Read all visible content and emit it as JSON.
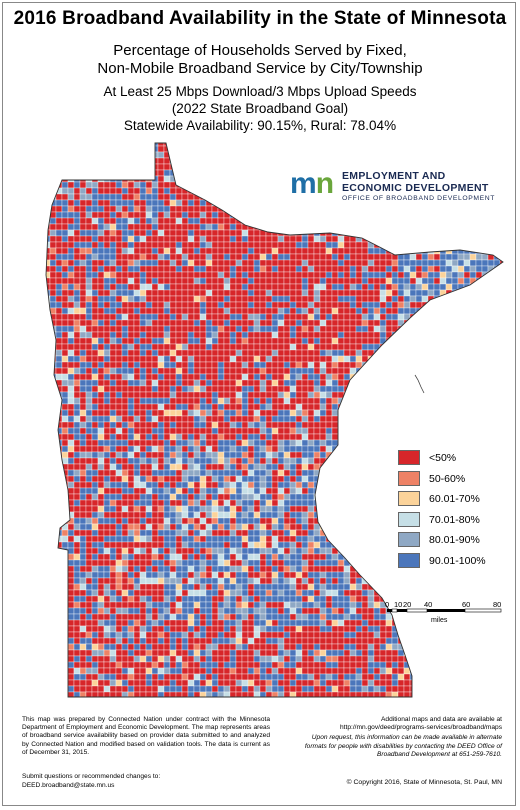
{
  "title": "2016 Broadband Availability in the State of Minnesota",
  "subtitle_line1": "Percentage of Households Served by Fixed,",
  "subtitle_line2": "Non-Mobile Broadband Service by City/Township",
  "speed_line": "At Least 25 Mbps Download/3 Mbps Upload Speeds",
  "goal_line": "(2022 State Broadband Goal)",
  "availability_line": "Statewide Availability: 90.15%, Rural: 78.04%",
  "logo": {
    "mark_m": "m",
    "mark_n": "n",
    "org_line1": "EMPLOYMENT AND",
    "org_line2": "ECONOMIC DEVELOPMENT",
    "org_line3": "OFFICE OF BROADBAND DEVELOPMENT"
  },
  "legend": [
    {
      "label": "<50%",
      "color": "#d7262a"
    },
    {
      "label": "50-60%",
      "color": "#ee8266"
    },
    {
      "label": "60.01-70%",
      "color": "#fbd39a"
    },
    {
      "label": "70.01-80%",
      "color": "#c6dfe6"
    },
    {
      "label": "80.01-90%",
      "color": "#8fa8c4"
    },
    {
      "label": "90.01-100%",
      "color": "#4b76bb"
    }
  ],
  "scale": {
    "ticks": [
      "0",
      "10",
      "20",
      "40",
      "60",
      "80"
    ],
    "units": "miles"
  },
  "note_left": "This map was prepared by Connected Nation under contract with the Minnesota Department of Employment and Economic Development. The map represents areas of broadband service availability based on provider data submitted to and analyzed by Connected Nation and modified based on validation tools.  The data is current as of December 31, 2015.",
  "submit_line1": "Submit questions or recommended changes to:",
  "submit_line2": "DEED.broadband@state.mn.us",
  "note_right_line1": "Additional maps and data are available at",
  "note_right_url": "http://mn.gov/deed/programs-services/broadband/maps",
  "note_right_italic": "Upon request, this information can be made available in alternate formats for people with disabilities by contacting the DEED Office of Broadband Development at 651-259-7610.",
  "copyright": "© Copyright 2016, State of Minnesota, St. Paul, MN"
}
